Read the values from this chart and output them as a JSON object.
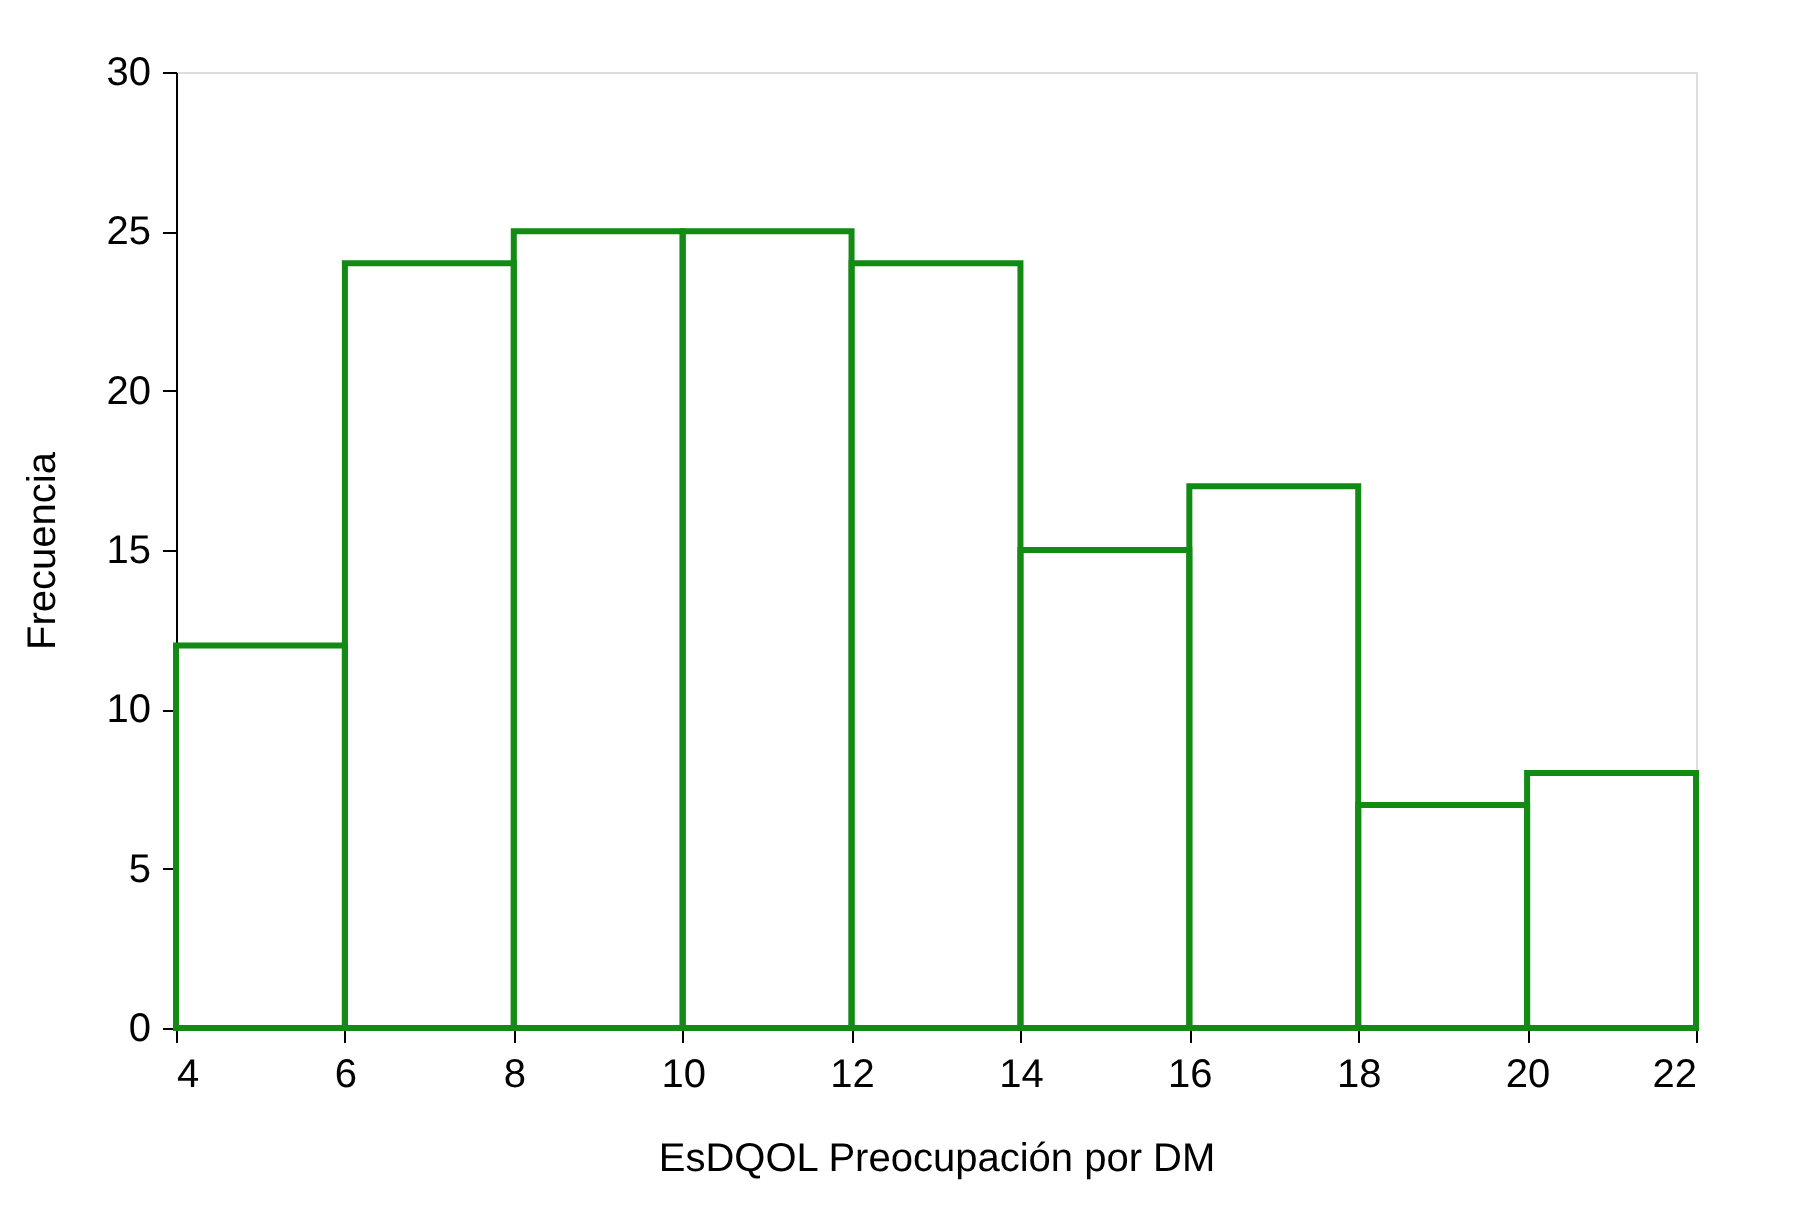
{
  "chart_data": {
    "type": "histogram",
    "xlabel": "EsDQOL Preocupación por DM",
    "ylabel": "Frecuencia",
    "bins": [
      4,
      6,
      8,
      10,
      12,
      14,
      16,
      18,
      20,
      22
    ],
    "values": [
      12,
      24,
      25,
      25,
      24,
      15,
      17,
      7,
      8
    ],
    "color": "#138a13",
    "xlim": [
      4,
      22
    ],
    "xticks": [
      4,
      6,
      8,
      10,
      12,
      14,
      16,
      18,
      20,
      22
    ],
    "ylim": [
      0,
      30
    ],
    "yticks": [
      0,
      5,
      10,
      15,
      20,
      25,
      30
    ],
    "grid": false
  }
}
